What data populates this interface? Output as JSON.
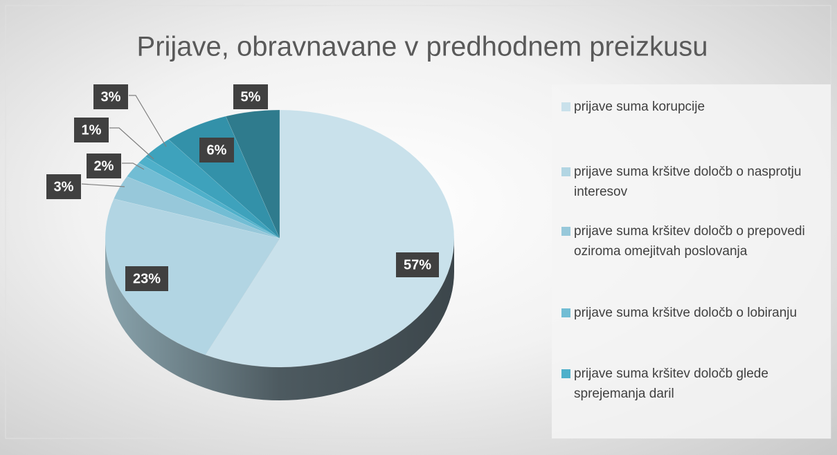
{
  "chart_data": {
    "type": "pie3d",
    "title": "Prijave, obravnavane v predhodnem preizkusu",
    "categories": [
      "prijave suma korupcije",
      "prijave suma kršitve določb o nasprotju interesov",
      "prijave suma kršitev določb o prepovedi oziroma omejitvah poslovanja",
      "prijave suma kršitve določb o lobiranju",
      "prijave suma kršitev določb glede sprejemanja daril",
      null,
      null,
      null
    ],
    "values": [
      57,
      23,
      3,
      2,
      1,
      3,
      6,
      5
    ],
    "value_labels": [
      "57%",
      "23%",
      "3%",
      "2%",
      "1%",
      "3%",
      "6%",
      "5%"
    ],
    "colors": [
      "#c9e1eb",
      "#b2d5e3",
      "#97c8da",
      "#72bdd4",
      "#4fb0ca",
      "#3ea2bc",
      "#3391a9",
      "#2f7b8d"
    ],
    "legend": "right"
  }
}
